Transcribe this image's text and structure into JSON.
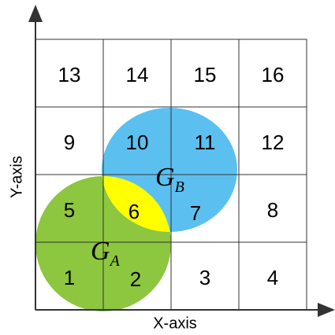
{
  "grid": {
    "rows": [
      [
        "13",
        "14",
        "15",
        "16"
      ],
      [
        "9",
        "10",
        "11",
        "12"
      ],
      [
        "5",
        "6",
        "7",
        "8"
      ],
      [
        "1",
        "2",
        "3",
        "4"
      ]
    ]
  },
  "regions": [
    {
      "name": "G",
      "subscript": "B"
    },
    {
      "name": "G",
      "subscript": "A"
    }
  ],
  "axes": {
    "x_label": "X-axis",
    "y_label": "Y-axis"
  }
}
